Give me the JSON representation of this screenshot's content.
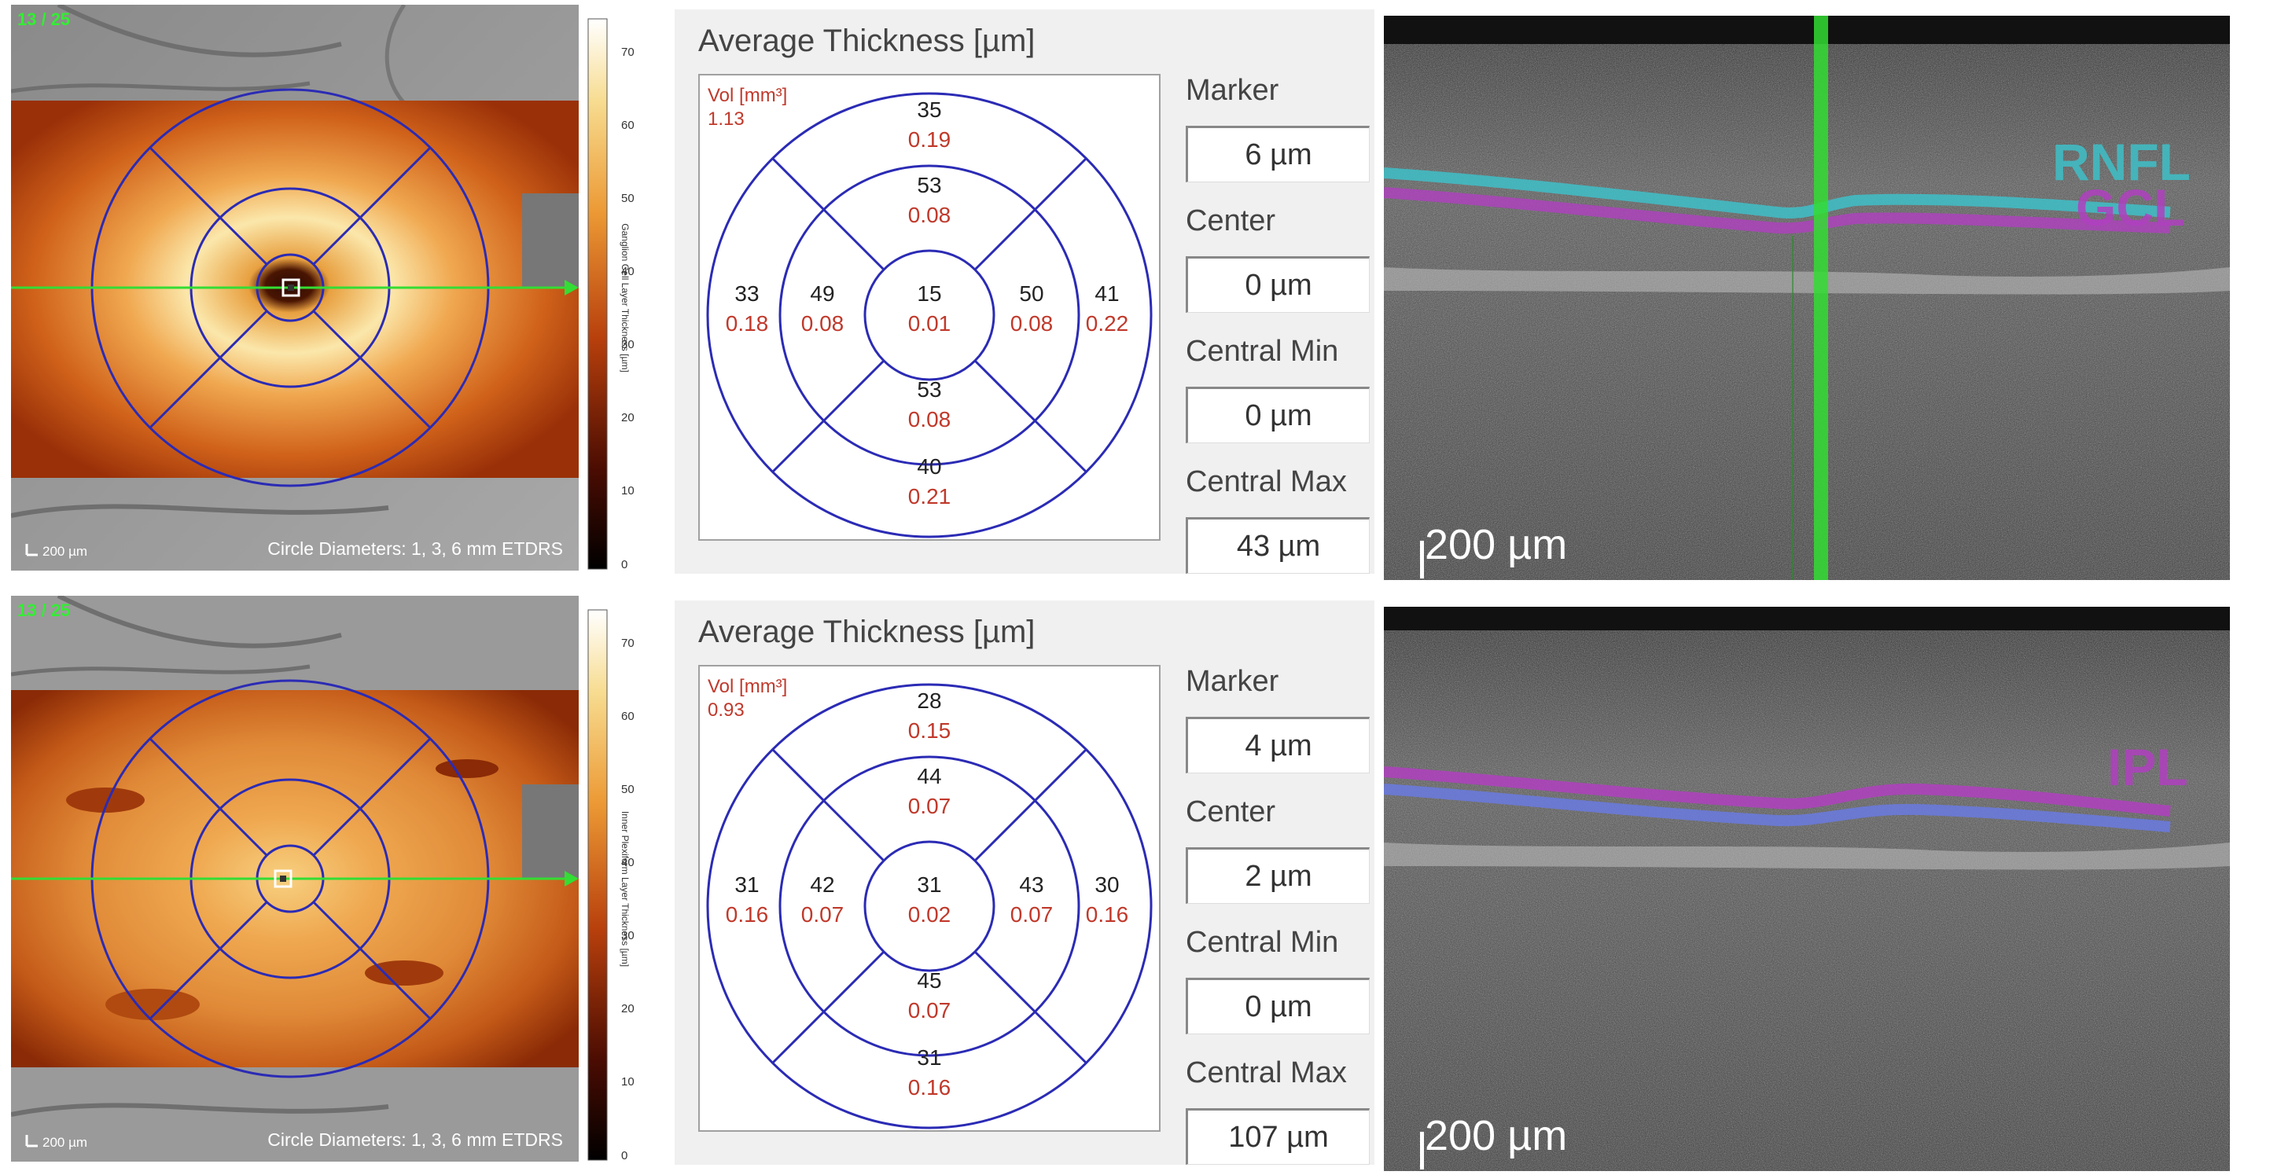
{
  "rows": [
    {
      "counter": "13 / 25",
      "scale_small": "200 µm",
      "circle_diameters": "Circle Diameters: 1, 3, 6 mm ETDRS",
      "colorbar": {
        "ticks": [
          "70",
          "60",
          "50",
          "40",
          "30",
          "20",
          "10",
          "0"
        ],
        "label": "Ganglion Cell Layer Thickness [µm]"
      },
      "panel": {
        "title": "Average Thickness [µm]",
        "vol_label": "Vol [mm³]",
        "vol_value": "1.13",
        "sectors": {
          "outer_top": {
            "thickness": "35",
            "volume": "0.19"
          },
          "inner_top": {
            "thickness": "53",
            "volume": "0.08"
          },
          "outer_left": {
            "thickness": "33",
            "volume": "0.18"
          },
          "inner_left": {
            "thickness": "49",
            "volume": "0.08"
          },
          "center": {
            "thickness": "15",
            "volume": "0.01"
          },
          "inner_right": {
            "thickness": "50",
            "volume": "0.08"
          },
          "outer_right": {
            "thickness": "41",
            "volume": "0.22"
          },
          "inner_bottom": {
            "thickness": "53",
            "volume": "0.08"
          },
          "outer_bottom": {
            "thickness": "40",
            "volume": "0.21"
          }
        }
      },
      "side": {
        "marker_label": "Marker",
        "marker_value": "6 µm",
        "center_label": "Center",
        "center_value": "0 µm",
        "central_min_label": "Central Min",
        "central_min_value": "0 µm",
        "central_max_label": "Central Max",
        "central_max_value": "43 µm"
      },
      "oct": {
        "scale": "200 µm",
        "layer_label_1": "RNFL",
        "layer_label_2": "GCL"
      }
    },
    {
      "counter": "13 / 25",
      "scale_small": "200 µm",
      "circle_diameters": "Circle Diameters: 1, 3, 6 mm ETDRS",
      "colorbar": {
        "ticks": [
          "70",
          "60",
          "50",
          "40",
          "30",
          "20",
          "10",
          "0"
        ],
        "label": "Inner Plexiform Layer Thickness [µm]"
      },
      "panel": {
        "title": "Average Thickness [µm]",
        "vol_label": "Vol [mm³]",
        "vol_value": "0.93",
        "sectors": {
          "outer_top": {
            "thickness": "28",
            "volume": "0.15"
          },
          "inner_top": {
            "thickness": "44",
            "volume": "0.07"
          },
          "outer_left": {
            "thickness": "31",
            "volume": "0.16"
          },
          "inner_left": {
            "thickness": "42",
            "volume": "0.07"
          },
          "center": {
            "thickness": "31",
            "volume": "0.02"
          },
          "inner_right": {
            "thickness": "43",
            "volume": "0.07"
          },
          "outer_right": {
            "thickness": "30",
            "volume": "0.16"
          },
          "inner_bottom": {
            "thickness": "45",
            "volume": "0.07"
          },
          "outer_bottom": {
            "thickness": "31",
            "volume": "0.16"
          }
        }
      },
      "side": {
        "marker_label": "Marker",
        "marker_value": "4 µm",
        "center_label": "Center",
        "center_value": "2 µm",
        "central_min_label": "Central Min",
        "central_min_value": "0 µm",
        "central_max_label": "Central Max",
        "central_max_value": "107 µm"
      },
      "oct": {
        "scale": "200 µm",
        "layer_label_1": "IPL"
      }
    }
  ],
  "colors": {
    "grid_blue": "#2b2bb5",
    "scan_green": "#33dd33",
    "volume_red": "#c0392b"
  }
}
